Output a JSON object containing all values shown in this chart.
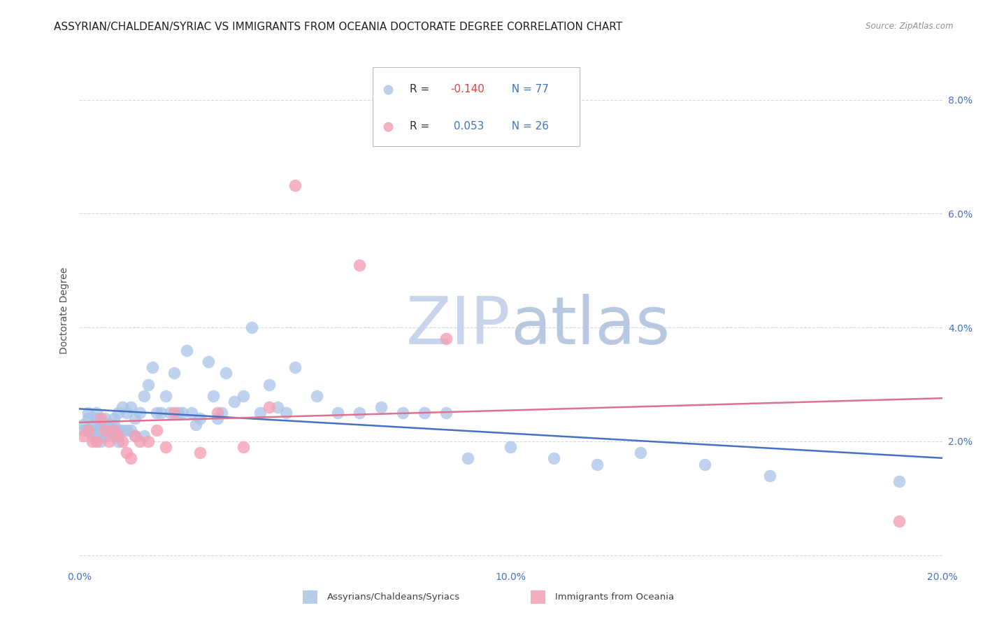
{
  "title": "ASSYRIAN/CHALDEAN/SYRIAC VS IMMIGRANTS FROM OCEANIA DOCTORATE DEGREE CORRELATION CHART",
  "source": "Source: ZipAtlas.com",
  "ylabel": "Doctorate Degree",
  "legend_label1": "Assyrians/Chaldeans/Syriacs",
  "legend_label2": "Immigrants from Oceania",
  "legend_R1": "R = -0.140",
  "legend_N1": "N = 77",
  "legend_R2": "R =  0.053",
  "legend_N2": "N = 26",
  "color1": "#a8c4e8",
  "color2": "#f4a0b4",
  "line_color1": "#4472c4",
  "line_color2": "#e07090",
  "xmin": 0.0,
  "xmax": 0.2,
  "ymin": -0.002,
  "ymax": 0.088,
  "yticks": [
    0.0,
    0.02,
    0.04,
    0.06,
    0.08
  ],
  "ytick_labels": [
    "",
    "2.0%",
    "4.0%",
    "6.0%",
    "8.0%"
  ],
  "xticks": [
    0.0,
    0.05,
    0.1,
    0.15,
    0.2
  ],
  "xtick_labels": [
    "0.0%",
    "",
    "10.0%",
    "",
    "20.0%"
  ],
  "watermark_top": "ZIP",
  "watermark_bottom": "atlas",
  "watermark_color_top": "#c8d4ec",
  "watermark_color_bottom": "#b8c8e0",
  "background_color": "#ffffff",
  "grid_color": "#d0d8e8",
  "tick_color": "#4472c4",
  "title_fontsize": 11,
  "axis_label_fontsize": 10,
  "tick_fontsize": 10,
  "blue_x": [
    0.001,
    0.001,
    0.002,
    0.002,
    0.002,
    0.003,
    0.003,
    0.003,
    0.004,
    0.004,
    0.004,
    0.005,
    0.005,
    0.005,
    0.006,
    0.006,
    0.006,
    0.007,
    0.007,
    0.008,
    0.008,
    0.008,
    0.009,
    0.009,
    0.009,
    0.01,
    0.01,
    0.011,
    0.011,
    0.012,
    0.012,
    0.013,
    0.013,
    0.014,
    0.015,
    0.015,
    0.016,
    0.017,
    0.018,
    0.019,
    0.02,
    0.021,
    0.022,
    0.023,
    0.024,
    0.025,
    0.026,
    0.027,
    0.028,
    0.03,
    0.031,
    0.032,
    0.033,
    0.034,
    0.036,
    0.038,
    0.04,
    0.042,
    0.044,
    0.046,
    0.048,
    0.05,
    0.055,
    0.06,
    0.065,
    0.07,
    0.075,
    0.08,
    0.085,
    0.09,
    0.1,
    0.11,
    0.12,
    0.13,
    0.145,
    0.16,
    0.19
  ],
  "blue_y": [
    0.023,
    0.022,
    0.025,
    0.024,
    0.022,
    0.023,
    0.022,
    0.021,
    0.025,
    0.024,
    0.021,
    0.023,
    0.022,
    0.02,
    0.024,
    0.023,
    0.021,
    0.023,
    0.022,
    0.024,
    0.023,
    0.021,
    0.025,
    0.022,
    0.02,
    0.026,
    0.022,
    0.025,
    0.022,
    0.026,
    0.022,
    0.024,
    0.021,
    0.025,
    0.028,
    0.021,
    0.03,
    0.033,
    0.025,
    0.025,
    0.028,
    0.025,
    0.032,
    0.025,
    0.025,
    0.036,
    0.025,
    0.023,
    0.024,
    0.034,
    0.028,
    0.024,
    0.025,
    0.032,
    0.027,
    0.028,
    0.04,
    0.025,
    0.03,
    0.026,
    0.025,
    0.033,
    0.028,
    0.025,
    0.025,
    0.026,
    0.025,
    0.025,
    0.025,
    0.017,
    0.019,
    0.017,
    0.016,
    0.018,
    0.016,
    0.014,
    0.013
  ],
  "pink_x": [
    0.001,
    0.002,
    0.003,
    0.004,
    0.005,
    0.006,
    0.007,
    0.008,
    0.009,
    0.01,
    0.011,
    0.012,
    0.013,
    0.014,
    0.016,
    0.018,
    0.02,
    0.022,
    0.028,
    0.032,
    0.038,
    0.044,
    0.05,
    0.065,
    0.085,
    0.19
  ],
  "pink_y": [
    0.021,
    0.022,
    0.02,
    0.02,
    0.024,
    0.022,
    0.02,
    0.022,
    0.021,
    0.02,
    0.018,
    0.017,
    0.021,
    0.02,
    0.02,
    0.022,
    0.019,
    0.025,
    0.018,
    0.025,
    0.019,
    0.026,
    0.065,
    0.051,
    0.038,
    0.006
  ]
}
